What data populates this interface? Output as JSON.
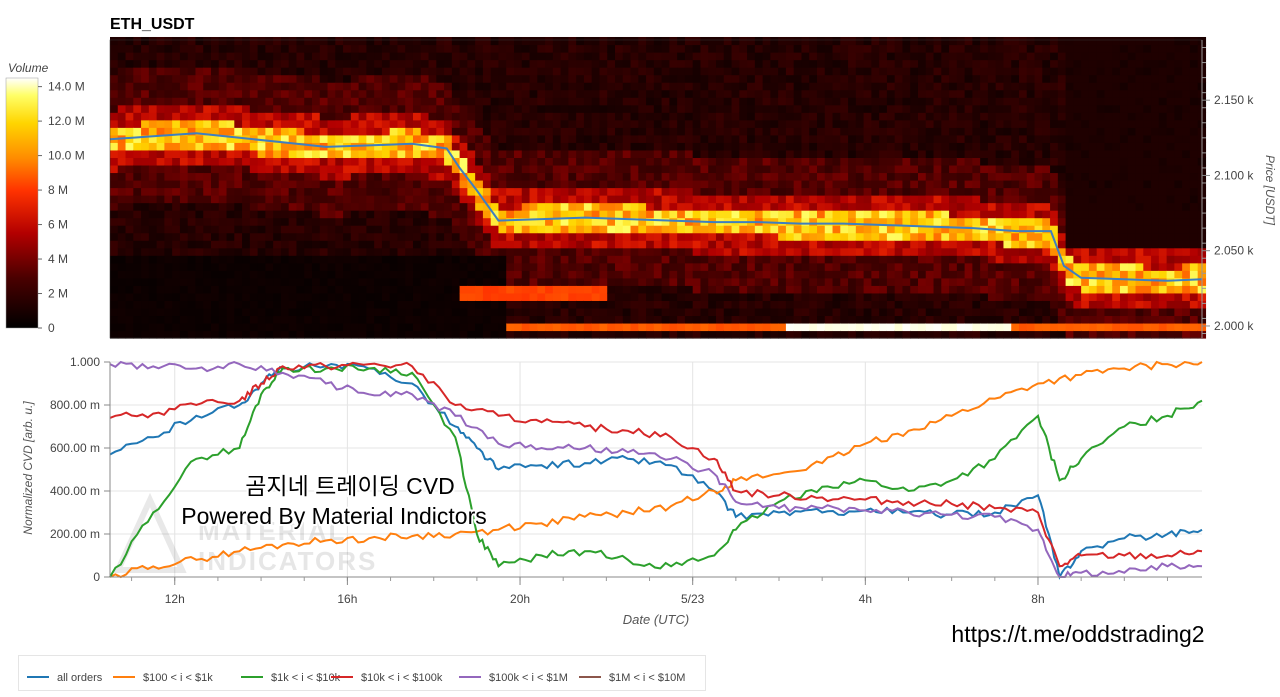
{
  "chart_data": [
    {
      "type": "heatmap",
      "title": "ETH_USDT",
      "colorbar": {
        "title": "Volume",
        "ticks": [
          "0",
          "2 M",
          "4 M",
          "6 M",
          "8 M",
          "10.0 M",
          "12.0 M",
          "14.0 M"
        ],
        "tick_values": [
          0,
          2,
          4,
          6,
          8,
          10,
          12,
          14
        ],
        "range": [
          0,
          14.5
        ],
        "colorscale": "hot (black-red-orange-yellow-white)"
      },
      "y_axis": {
        "label": "Price [USDT]",
        "ticks": [
          "2.000 k",
          "2.050 k",
          "2.100 k",
          "2.150 k"
        ],
        "tick_values": [
          2000,
          2050,
          2100,
          2150
        ],
        "range": [
          1992,
          2190
        ],
        "position": "right"
      },
      "x_range": [
        10.5,
        35.8
      ],
      "price_line": {
        "color": "#3f7fbf",
        "points": [
          [
            10.5,
            2124
          ],
          [
            11.5,
            2126
          ],
          [
            12.5,
            2128
          ],
          [
            13.5,
            2125
          ],
          [
            14.5,
            2122
          ],
          [
            15.5,
            2119
          ],
          [
            16.5,
            2120
          ],
          [
            17.5,
            2121
          ],
          [
            18.3,
            2118
          ],
          [
            18.6,
            2105
          ],
          [
            19.0,
            2090
          ],
          [
            19.5,
            2070
          ],
          [
            20.5,
            2071
          ],
          [
            21.5,
            2072
          ],
          [
            22.5,
            2071
          ],
          [
            23.5,
            2070
          ],
          [
            24.5,
            2069
          ],
          [
            25.5,
            2069
          ],
          [
            26.5,
            2068
          ],
          [
            27.5,
            2068
          ],
          [
            28.5,
            2067
          ],
          [
            29.5,
            2066
          ],
          [
            30.5,
            2065
          ],
          [
            31.5,
            2063
          ],
          [
            32.3,
            2063
          ],
          [
            32.6,
            2040
          ],
          [
            33.0,
            2032
          ],
          [
            34.0,
            2031
          ],
          [
            35.0,
            2030
          ],
          [
            35.8,
            2031
          ]
        ]
      },
      "volume_levels": [
        {
          "price": 2000,
          "x": [
            19.5,
            35.8
          ],
          "base_volume": 8.5,
          "note": "wall with peak 14.5 between 26.0 and 31.2"
        },
        {
          "price": 2022,
          "x": [
            18.5,
            22.0
          ],
          "base_volume": 8.0
        }
      ]
    },
    {
      "type": "line",
      "title": "",
      "xlabel": "Date (UTC)",
      "ylabel": "Normalized CVD [arb. u.]",
      "x_ticks": [
        {
          "value": 12,
          "label": "12h"
        },
        {
          "value": 16,
          "label": "16h"
        },
        {
          "value": 20,
          "label": "20h"
        },
        {
          "value": 24,
          "label": "5/23"
        },
        {
          "value": 28,
          "label": "4h"
        },
        {
          "value": 32,
          "label": "8h"
        }
      ],
      "y_ticks": [
        {
          "value": 0,
          "label": "0"
        },
        {
          "value": 0.2,
          "label": "200.00 m"
        },
        {
          "value": 0.4,
          "label": "400.00 m"
        },
        {
          "value": 0.6,
          "label": "600.00 m"
        },
        {
          "value": 0.8,
          "label": "800.00 m"
        },
        {
          "value": 1.0,
          "label": "1.000"
        }
      ],
      "xlim": [
        10.5,
        35.8
      ],
      "ylim": [
        0,
        1.0
      ],
      "grid": true,
      "legend_position": "bottom-left",
      "series": [
        {
          "name": "all orders",
          "color": "#1f77b4",
          "points": [
            [
              10.5,
              0.57
            ],
            [
              11.5,
              0.65
            ],
            [
              12.5,
              0.75
            ],
            [
              13.5,
              0.8
            ],
            [
              14,
              0.9
            ],
            [
              14.5,
              0.97
            ],
            [
              15.5,
              0.98
            ],
            [
              16.5,
              0.97
            ],
            [
              17.5,
              0.9
            ],
            [
              18.5,
              0.7
            ],
            [
              19,
              0.6
            ],
            [
              19.5,
              0.5
            ],
            [
              20.5,
              0.52
            ],
            [
              21.5,
              0.53
            ],
            [
              22.5,
              0.55
            ],
            [
              23.5,
              0.52
            ],
            [
              24.5,
              0.4
            ],
            [
              25,
              0.28
            ],
            [
              26,
              0.3
            ],
            [
              27,
              0.3
            ],
            [
              28,
              0.31
            ],
            [
              29,
              0.3
            ],
            [
              30,
              0.29
            ],
            [
              31,
              0.3
            ],
            [
              32,
              0.38
            ],
            [
              32.5,
              0.0
            ],
            [
              33,
              0.12
            ],
            [
              34,
              0.18
            ],
            [
              35,
              0.2
            ],
            [
              35.8,
              0.22
            ]
          ]
        },
        {
          "name": "$100 < i < $1k",
          "color": "#ff7f0e",
          "points": [
            [
              10.5,
              0.0
            ],
            [
              11.5,
              0.05
            ],
            [
              12.5,
              0.08
            ],
            [
              13.5,
              0.12
            ],
            [
              14.5,
              0.15
            ],
            [
              15.5,
              0.17
            ],
            [
              16.5,
              0.18
            ],
            [
              17.5,
              0.19
            ],
            [
              18.5,
              0.2
            ],
            [
              19.5,
              0.22
            ],
            [
              20.5,
              0.25
            ],
            [
              21.5,
              0.28
            ],
            [
              22.5,
              0.3
            ],
            [
              23.5,
              0.33
            ],
            [
              24.5,
              0.4
            ],
            [
              25,
              0.45
            ],
            [
              26,
              0.48
            ],
            [
              27,
              0.53
            ],
            [
              28,
              0.62
            ],
            [
              29,
              0.68
            ],
            [
              30,
              0.75
            ],
            [
              31,
              0.83
            ],
            [
              32,
              0.9
            ],
            [
              33,
              0.94
            ],
            [
              34,
              0.97
            ],
            [
              35,
              0.99
            ],
            [
              35.8,
              1.0
            ]
          ]
        },
        {
          "name": "$1k < i < $10k",
          "color": "#2ca02c",
          "points": [
            [
              10.5,
              0.0
            ],
            [
              11.5,
              0.3
            ],
            [
              12.5,
              0.55
            ],
            [
              13.5,
              0.6
            ],
            [
              14,
              0.85
            ],
            [
              14.5,
              0.97
            ],
            [
              15.5,
              0.97
            ],
            [
              16.5,
              0.97
            ],
            [
              17.5,
              0.95
            ],
            [
              18.5,
              0.65
            ],
            [
              19,
              0.2
            ],
            [
              19.5,
              0.05
            ],
            [
              20.5,
              0.1
            ],
            [
              21.5,
              0.12
            ],
            [
              22.5,
              0.08
            ],
            [
              23.5,
              0.05
            ],
            [
              24.5,
              0.1
            ],
            [
              25,
              0.22
            ],
            [
              26,
              0.35
            ],
            [
              27,
              0.42
            ],
            [
              28,
              0.45
            ],
            [
              29,
              0.4
            ],
            [
              30,
              0.45
            ],
            [
              31,
              0.55
            ],
            [
              32,
              0.75
            ],
            [
              32.5,
              0.45
            ],
            [
              33,
              0.55
            ],
            [
              34,
              0.7
            ],
            [
              35,
              0.75
            ],
            [
              35.8,
              0.82
            ]
          ]
        },
        {
          "name": "$10k < i < $100k",
          "color": "#d62728",
          "points": [
            [
              10.5,
              0.74
            ],
            [
              11.5,
              0.76
            ],
            [
              12.5,
              0.8
            ],
            [
              13.5,
              0.82
            ],
            [
              14,
              0.9
            ],
            [
              14.5,
              0.98
            ],
            [
              15.5,
              0.98
            ],
            [
              16.5,
              0.99
            ],
            [
              17.5,
              0.98
            ],
            [
              18.5,
              0.8
            ],
            [
              19.5,
              0.75
            ],
            [
              20.5,
              0.72
            ],
            [
              21.5,
              0.7
            ],
            [
              22.5,
              0.68
            ],
            [
              23.5,
              0.65
            ],
            [
              24.5,
              0.55
            ],
            [
              25,
              0.4
            ],
            [
              26,
              0.38
            ],
            [
              27,
              0.37
            ],
            [
              28,
              0.36
            ],
            [
              29,
              0.35
            ],
            [
              30,
              0.34
            ],
            [
              31,
              0.32
            ],
            [
              32,
              0.3
            ],
            [
              32.5,
              0.05
            ],
            [
              33,
              0.1
            ],
            [
              34,
              0.1
            ],
            [
              35,
              0.1
            ],
            [
              35.8,
              0.12
            ]
          ]
        },
        {
          "name": "$100k < i < $1M",
          "color": "#9467bd",
          "points": [
            [
              10.5,
              0.99
            ],
            [
              11.5,
              0.98
            ],
            [
              12.5,
              0.97
            ],
            [
              13.5,
              0.99
            ],
            [
              14.5,
              0.95
            ],
            [
              15.5,
              0.9
            ],
            [
              16.5,
              0.85
            ],
            [
              17.5,
              0.85
            ],
            [
              18.5,
              0.75
            ],
            [
              19.5,
              0.62
            ],
            [
              20.5,
              0.6
            ],
            [
              21.5,
              0.6
            ],
            [
              22.5,
              0.58
            ],
            [
              23.5,
              0.55
            ],
            [
              24.5,
              0.48
            ],
            [
              25,
              0.35
            ],
            [
              26,
              0.32
            ],
            [
              27,
              0.32
            ],
            [
              28,
              0.31
            ],
            [
              29,
              0.3
            ],
            [
              30,
              0.29
            ],
            [
              31,
              0.28
            ],
            [
              32,
              0.22
            ],
            [
              32.5,
              0.0
            ],
            [
              33,
              0.02
            ],
            [
              34,
              0.02
            ],
            [
              35,
              0.05
            ],
            [
              35.8,
              0.05
            ]
          ]
        },
        {
          "name": "$1M < i < $10M",
          "color": "#8c564b",
          "points": []
        }
      ]
    }
  ],
  "overlay": {
    "title_line1": "곰지네 트레이딩 CVD",
    "title_line2": "Powered By Material Indictors",
    "url": "https://t.me/oddstrading2",
    "watermark": "MATERIAL INDICATORS"
  }
}
